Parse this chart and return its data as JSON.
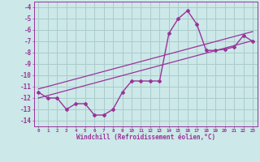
{
  "background_color": "#cce8e8",
  "grid_color": "#aacccc",
  "line_color": "#993399",
  "xlabel": "Windchill (Refroidissement éolien,°C)",
  "x_hours": [
    0,
    1,
    2,
    3,
    4,
    5,
    6,
    7,
    8,
    9,
    10,
    11,
    12,
    13,
    14,
    15,
    16,
    17,
    18,
    19,
    20,
    21,
    22,
    23
  ],
  "windchill": [
    -11.5,
    -12.0,
    -12.0,
    -13.0,
    -12.5,
    -12.5,
    -13.5,
    -13.5,
    -13.0,
    -11.5,
    -10.5,
    -10.5,
    -10.5,
    -10.5,
    -6.3,
    -5.0,
    -4.3,
    -5.5,
    -7.8,
    -7.8,
    -7.7,
    -7.5,
    -6.5,
    -7.0
  ],
  "fit1": [
    -12.0,
    -11.78,
    -11.56,
    -11.34,
    -11.12,
    -10.9,
    -10.68,
    -10.46,
    -10.24,
    -10.02,
    -9.8,
    -9.58,
    -9.36,
    -9.14,
    -8.92,
    -8.7,
    -8.48,
    -8.26,
    -8.04,
    -7.82,
    -7.6,
    -7.38,
    -7.16,
    -6.94
  ],
  "fit2": [
    -11.2,
    -10.98,
    -10.76,
    -10.54,
    -10.32,
    -10.1,
    -9.88,
    -9.66,
    -9.44,
    -9.22,
    -9.0,
    -8.78,
    -8.56,
    -8.34,
    -8.12,
    -7.9,
    -7.68,
    -7.46,
    -7.24,
    -7.02,
    -6.8,
    -6.58,
    -6.36,
    -6.14
  ],
  "ylim": [
    -14.5,
    -3.5
  ],
  "xlim": [
    -0.5,
    23.5
  ],
  "yticks": [
    -4,
    -5,
    -6,
    -7,
    -8,
    -9,
    -10,
    -11,
    -12,
    -13,
    -14
  ],
  "xticks": [
    0,
    1,
    2,
    3,
    4,
    5,
    6,
    7,
    8,
    9,
    10,
    11,
    12,
    13,
    14,
    15,
    16,
    17,
    18,
    19,
    20,
    21,
    22,
    23
  ],
  "xticklabels": [
    "0",
    "1",
    "2",
    "3",
    "4",
    "5",
    "6",
    "7",
    "8",
    "9",
    "10",
    "11",
    "12",
    "13",
    "14",
    "15",
    "16",
    "17",
    "18",
    "19",
    "20",
    "21",
    "22",
    "23"
  ]
}
